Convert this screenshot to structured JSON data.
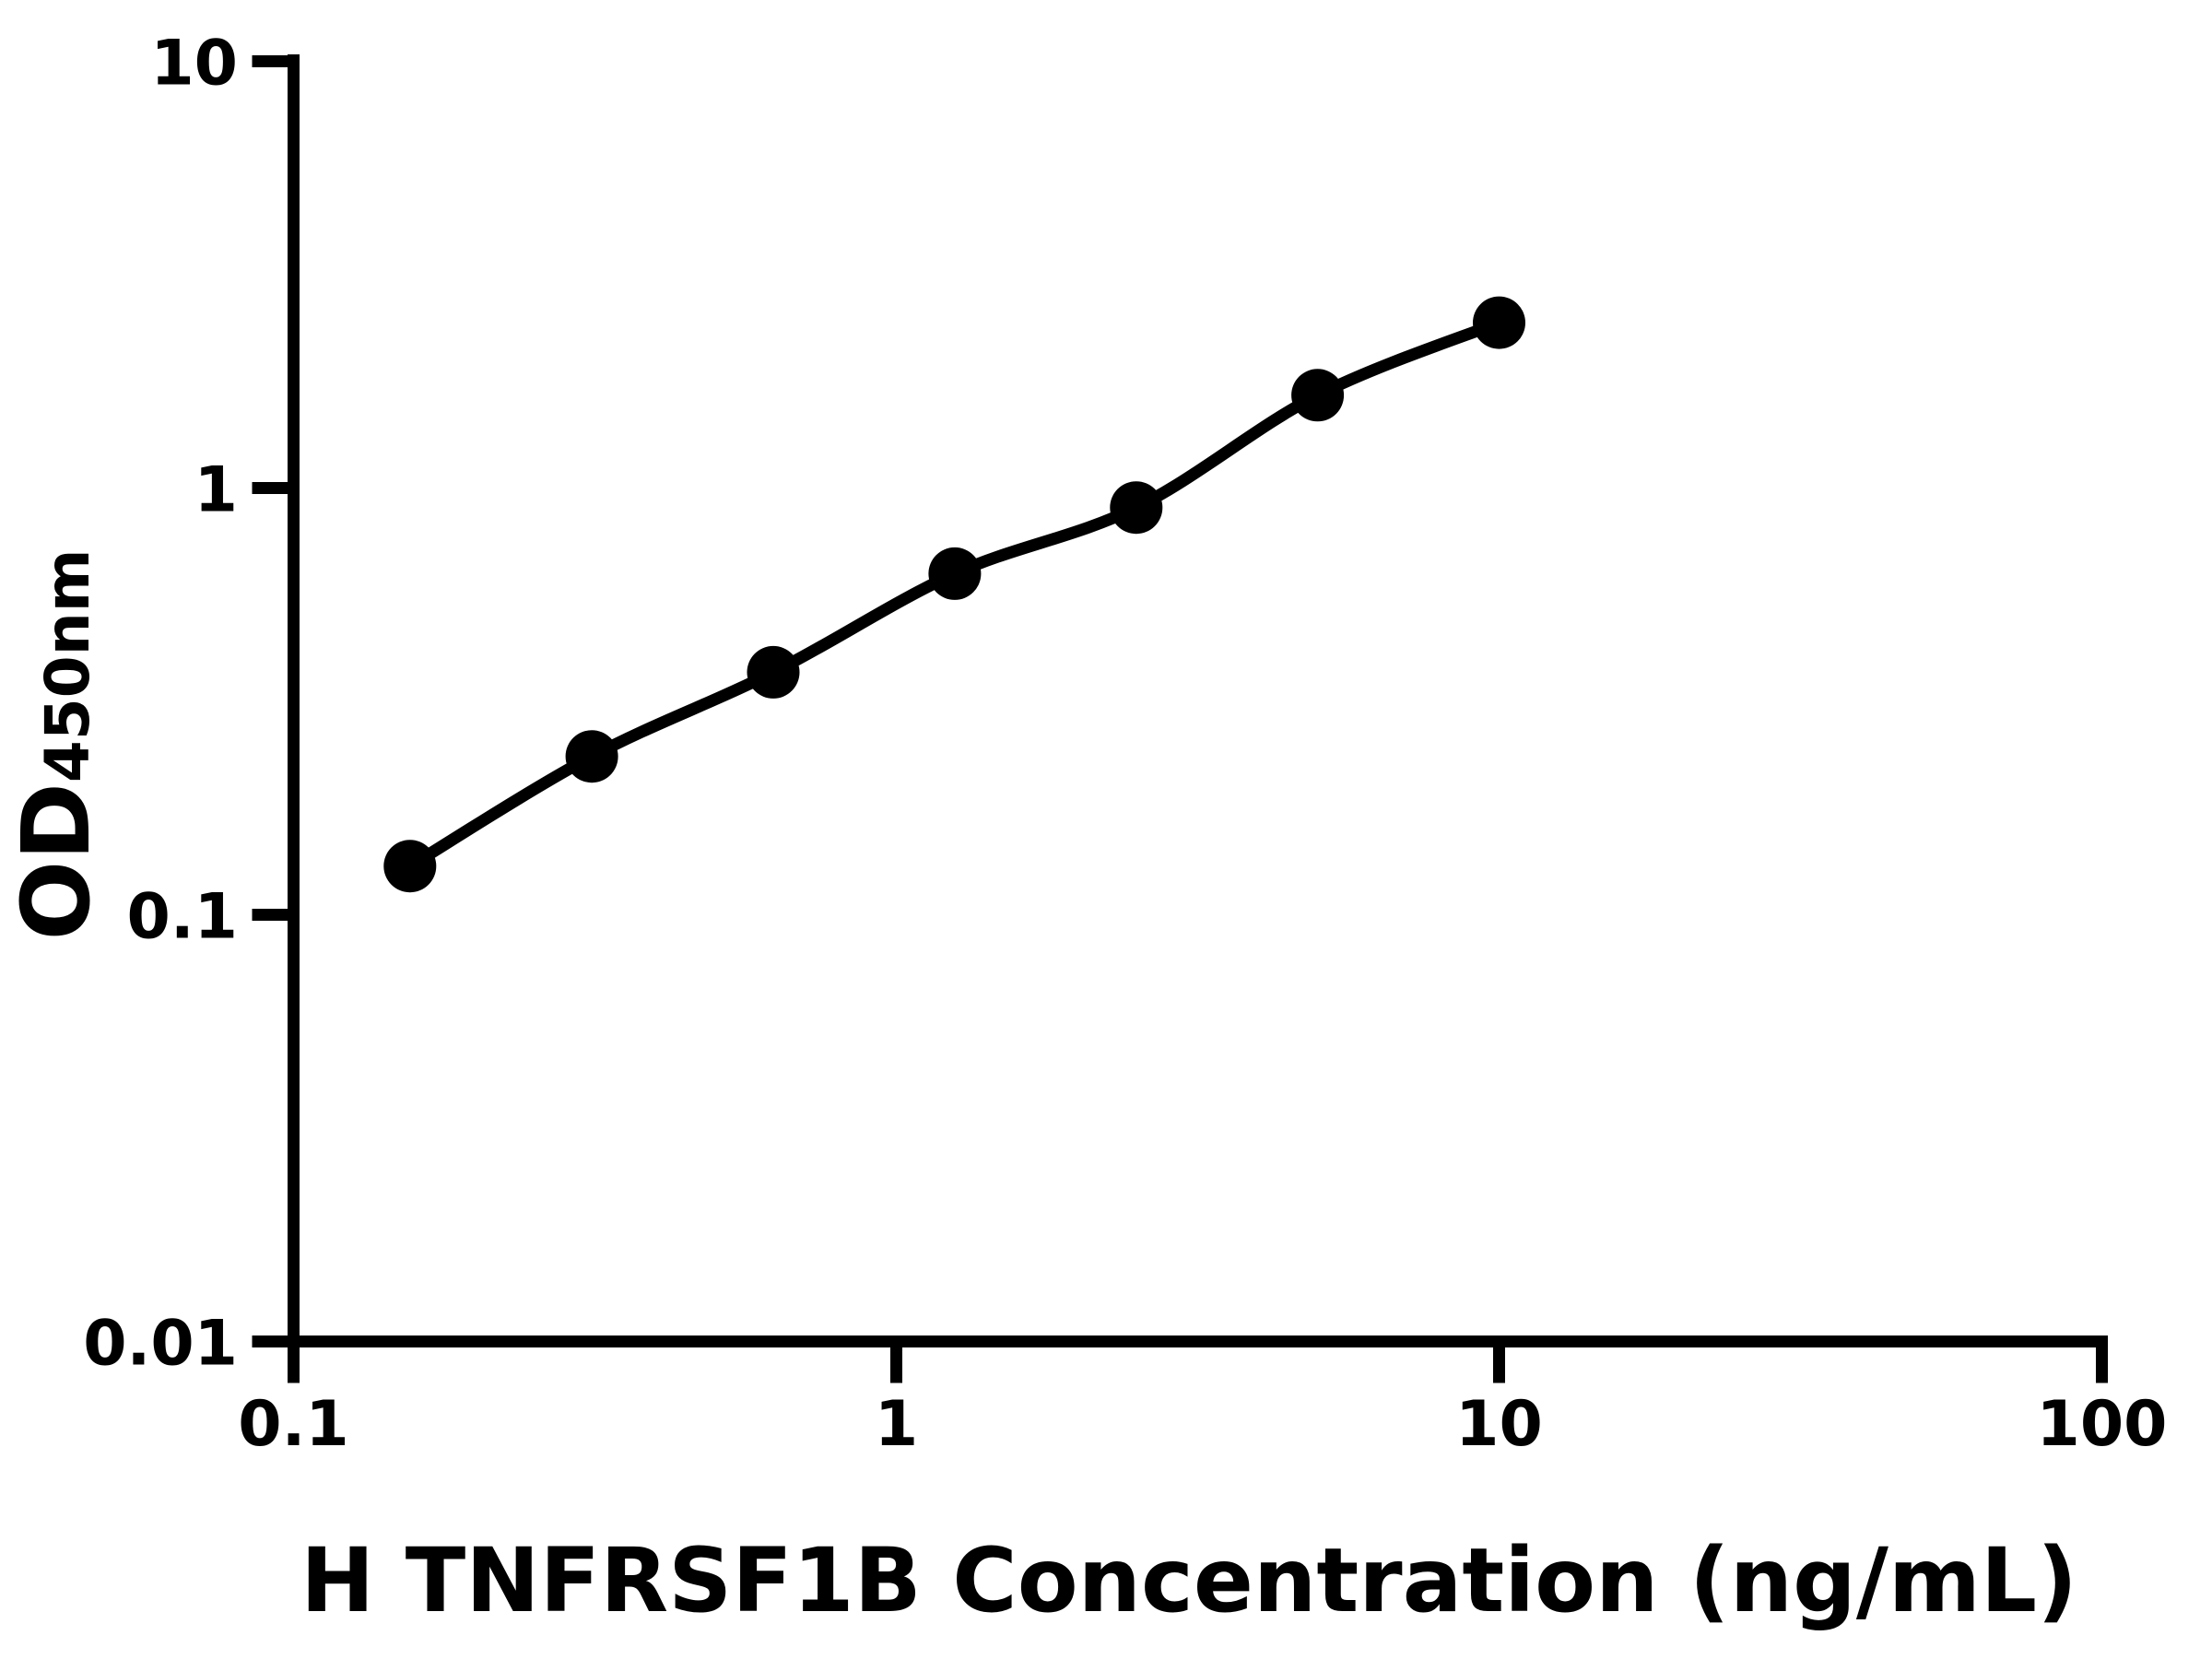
{
  "figure": {
    "background_color": "#ffffff",
    "ink_color": "#000000"
  },
  "chart_data": {
    "type": "scatter",
    "subtype": "log-log standard curve with fitted line",
    "title": "",
    "xlabel": "H TNFRSF1B Concentration (ng/mL)",
    "ylabel_main": "OD",
    "ylabel_sub": "450nm",
    "x_scale": "log",
    "y_scale": "log",
    "xlim": [
      0.1,
      100
    ],
    "ylim": [
      0.01,
      10
    ],
    "x_ticks": [
      0.1,
      1,
      10,
      100
    ],
    "x_tick_labels": [
      "0.1",
      "1",
      "10",
      "100"
    ],
    "y_ticks": [
      10,
      1,
      0.1,
      0.01
    ],
    "y_tick_labels": [
      "10",
      "1",
      "0.1",
      "0.01"
    ],
    "grid": false,
    "legend": null,
    "marker": "filled-circle",
    "marker_color": "#000000",
    "line_color": "#000000",
    "x": [
      0.156,
      0.3125,
      0.625,
      1.25,
      2.5,
      5,
      10
    ],
    "y": [
      0.13,
      0.235,
      0.37,
      0.63,
      0.9,
      1.65,
      2.44
    ]
  }
}
